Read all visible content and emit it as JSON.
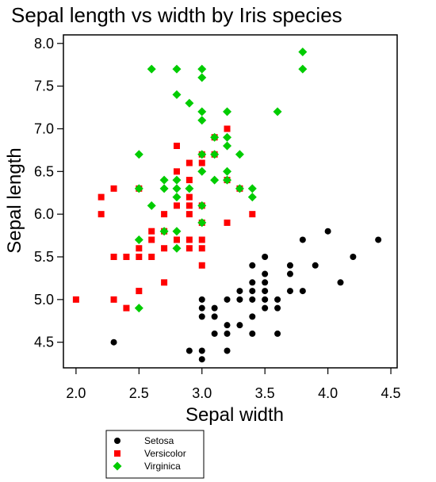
{
  "chart_data": {
    "type": "scatter",
    "title": "Sepal length vs width by Iris species",
    "xlabel": "Sepal width",
    "ylabel": "Sepal length",
    "xlim": [
      1.9,
      4.55
    ],
    "ylim": [
      4.2,
      8.1
    ],
    "x_ticks": [
      "2.0",
      "2.5",
      "3.0",
      "3.5",
      "4.0",
      "4.5"
    ],
    "y_ticks": [
      "4.5",
      "5.0",
      "5.5",
      "6.0",
      "6.5",
      "7.0",
      "7.5",
      "8.0"
    ],
    "grid": false,
    "legend_placement": "bottom-left, below plot",
    "series": [
      {
        "name": "Setosa",
        "marker": "circle",
        "color": "#000000",
        "points": [
          [
            2.3,
            4.5
          ],
          [
            2.9,
            4.4
          ],
          [
            3.0,
            4.4
          ],
          [
            3.0,
            4.3
          ],
          [
            3.0,
            4.8
          ],
          [
            3.0,
            4.9
          ],
          [
            3.0,
            5.0
          ],
          [
            3.1,
            4.8
          ],
          [
            3.1,
            4.6
          ],
          [
            3.1,
            4.9
          ],
          [
            3.2,
            5.0
          ],
          [
            3.2,
            4.4
          ],
          [
            3.2,
            4.6
          ],
          [
            3.2,
            4.7
          ],
          [
            3.3,
            5.0
          ],
          [
            3.3,
            5.1
          ],
          [
            3.4,
            4.8
          ],
          [
            3.4,
            5.0
          ],
          [
            3.4,
            5.2
          ],
          [
            3.4,
            5.4
          ],
          [
            3.4,
            4.6
          ],
          [
            3.4,
            5.1
          ],
          [
            3.5,
            5.0
          ],
          [
            3.5,
            5.1
          ],
          [
            3.5,
            5.2
          ],
          [
            3.5,
            5.5
          ],
          [
            3.6,
            4.6
          ],
          [
            3.6,
            5.0
          ],
          [
            3.7,
            5.1
          ],
          [
            3.7,
            5.3
          ],
          [
            3.7,
            5.4
          ],
          [
            3.8,
            5.1
          ],
          [
            3.8,
            5.7
          ],
          [
            3.9,
            5.4
          ],
          [
            4.0,
            5.8
          ],
          [
            4.1,
            5.2
          ],
          [
            4.2,
            5.5
          ],
          [
            4.4,
            5.7
          ],
          [
            3.5,
            4.9
          ],
          [
            3.6,
            4.9
          ],
          [
            3.3,
            4.7
          ],
          [
            3.5,
            5.3
          ]
        ]
      },
      {
        "name": "Versicolor",
        "marker": "square",
        "color": "#ff0000",
        "points": [
          [
            2.0,
            5.0
          ],
          [
            2.2,
            6.0
          ],
          [
            2.2,
            6.2
          ],
          [
            2.3,
            5.0
          ],
          [
            2.3,
            5.5
          ],
          [
            2.3,
            6.3
          ],
          [
            2.4,
            4.9
          ],
          [
            2.4,
            5.5
          ],
          [
            2.5,
            5.1
          ],
          [
            2.5,
            5.5
          ],
          [
            2.5,
            5.6
          ],
          [
            2.5,
            6.3
          ],
          [
            2.6,
            5.5
          ],
          [
            2.6,
            5.7
          ],
          [
            2.6,
            5.8
          ],
          [
            2.7,
            5.2
          ],
          [
            2.7,
            5.8
          ],
          [
            2.7,
            5.6
          ],
          [
            2.7,
            6.0
          ],
          [
            2.8,
            5.7
          ],
          [
            2.8,
            6.1
          ],
          [
            2.8,
            6.5
          ],
          [
            2.8,
            6.8
          ],
          [
            2.9,
            5.6
          ],
          [
            2.9,
            5.7
          ],
          [
            2.9,
            6.0
          ],
          [
            2.9,
            6.1
          ],
          [
            2.9,
            6.2
          ],
          [
            2.9,
            6.4
          ],
          [
            2.9,
            6.6
          ],
          [
            3.0,
            5.4
          ],
          [
            3.0,
            5.6
          ],
          [
            3.0,
            5.7
          ],
          [
            3.0,
            5.9
          ],
          [
            3.0,
            6.1
          ],
          [
            3.0,
            6.6
          ],
          [
            3.0,
            6.7
          ],
          [
            3.1,
            6.7
          ],
          [
            3.1,
            6.9
          ],
          [
            3.2,
            5.9
          ],
          [
            3.2,
            6.4
          ],
          [
            3.2,
            7.0
          ],
          [
            3.3,
            6.3
          ],
          [
            3.4,
            6.0
          ]
        ]
      },
      {
        "name": "Virginica",
        "marker": "diamond",
        "color": "#00cc00",
        "points": [
          [
            2.5,
            4.9
          ],
          [
            2.5,
            5.7
          ],
          [
            2.5,
            6.3
          ],
          [
            2.5,
            6.7
          ],
          [
            2.6,
            6.1
          ],
          [
            2.6,
            7.7
          ],
          [
            2.7,
            6.3
          ],
          [
            2.7,
            6.4
          ],
          [
            2.7,
            5.8
          ],
          [
            2.8,
            5.6
          ],
          [
            2.8,
            5.8
          ],
          [
            2.8,
            6.2
          ],
          [
            2.8,
            6.3
          ],
          [
            2.8,
            6.4
          ],
          [
            2.8,
            7.4
          ],
          [
            2.8,
            7.7
          ],
          [
            2.9,
            6.3
          ],
          [
            2.9,
            7.3
          ],
          [
            3.0,
            6.1
          ],
          [
            3.0,
            6.5
          ],
          [
            3.0,
            6.7
          ],
          [
            3.0,
            7.1
          ],
          [
            3.0,
            7.2
          ],
          [
            3.0,
            7.6
          ],
          [
            3.0,
            7.7
          ],
          [
            3.0,
            5.9
          ],
          [
            3.1,
            6.4
          ],
          [
            3.1,
            6.7
          ],
          [
            3.1,
            6.9
          ],
          [
            3.2,
            6.4
          ],
          [
            3.2,
            6.5
          ],
          [
            3.2,
            6.8
          ],
          [
            3.2,
            6.9
          ],
          [
            3.2,
            7.2
          ],
          [
            3.3,
            6.3
          ],
          [
            3.3,
            6.7
          ],
          [
            3.4,
            6.2
          ],
          [
            3.4,
            6.3
          ],
          [
            3.6,
            7.2
          ],
          [
            3.8,
            7.7
          ],
          [
            3.8,
            7.9
          ]
        ]
      }
    ]
  }
}
